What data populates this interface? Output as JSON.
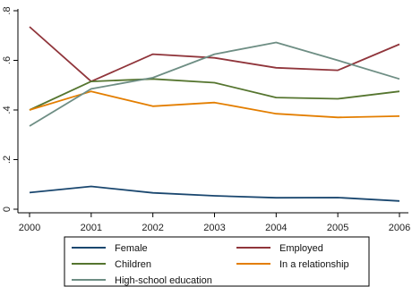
{
  "chart_data": {
    "type": "line",
    "title": "",
    "xlabel": "",
    "ylabel": "",
    "x": [
      2000,
      2001,
      2002,
      2003,
      2004,
      2005,
      2006
    ],
    "xlim": [
      2000,
      2006
    ],
    "ylim": [
      0,
      0.8
    ],
    "yticks": [
      0,
      0.2,
      0.4,
      0.6,
      0.8
    ],
    "ytick_labels": [
      "0",
      ".2",
      ".4",
      ".6",
      ".8"
    ],
    "xtick_labels": [
      "2000",
      "2001",
      "2002",
      "2003",
      "2004",
      "2005",
      "2006"
    ],
    "grid": false,
    "legend_position": "bottom",
    "series": [
      {
        "name": "Female",
        "color": "#1a476f",
        "values": [
          0.067,
          0.092,
          0.066,
          0.054,
          0.046,
          0.047,
          0.033
        ]
      },
      {
        "name": "Employed",
        "color": "#90353b",
        "values": [
          0.735,
          0.515,
          0.625,
          0.61,
          0.57,
          0.56,
          0.665
        ]
      },
      {
        "name": "Children",
        "color": "#55752f",
        "values": [
          0.4,
          0.515,
          0.525,
          0.51,
          0.45,
          0.445,
          0.475
        ]
      },
      {
        "name": "In a relationship",
        "color": "#e37e00",
        "values": [
          0.4,
          0.475,
          0.415,
          0.43,
          0.385,
          0.37,
          0.375
        ]
      },
      {
        "name": "High-school education",
        "color": "#6e8e84",
        "values": [
          0.335,
          0.485,
          0.53,
          0.625,
          0.672,
          0.6,
          0.525
        ]
      }
    ]
  }
}
